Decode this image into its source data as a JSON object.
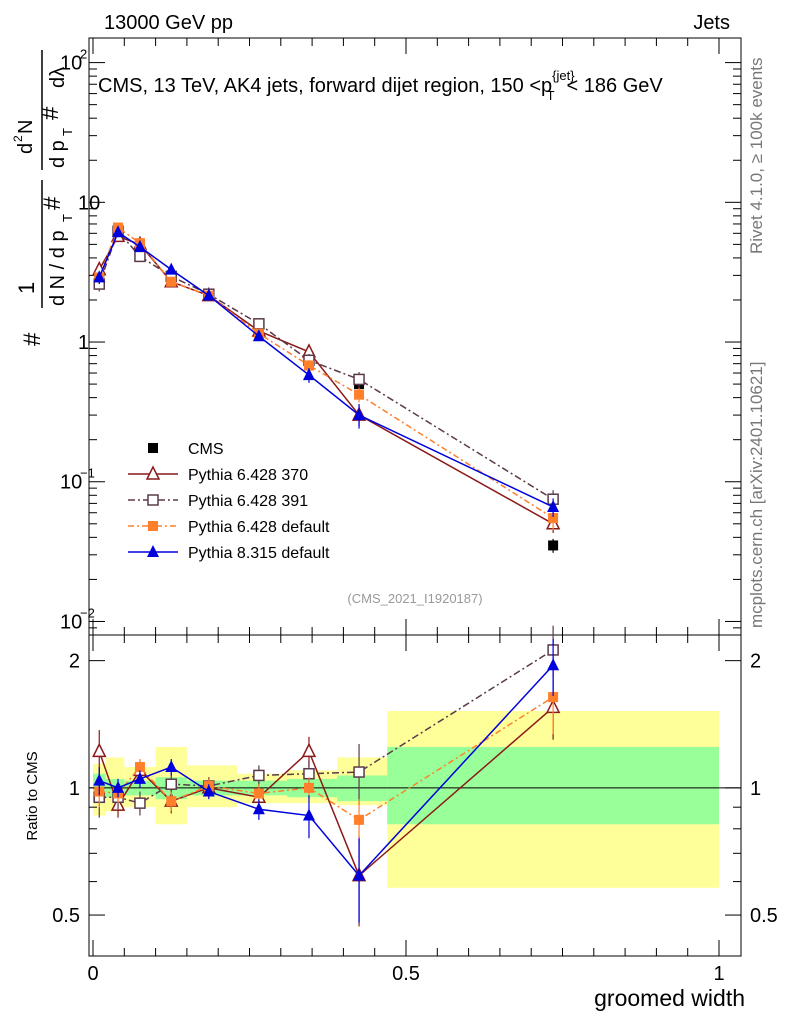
{
  "header": {
    "left": "13000 GeV pp",
    "right": "Jets"
  },
  "side_labels": {
    "rivet": "Rivet 4.1.0, ≥ 100k events",
    "mcplots": "mcplots.cern.ch [arXiv:2401.10621]"
  },
  "colors": {
    "cms": "#000000",
    "p370": "#8b1a1a",
    "p391": "#5a3a4a",
    "pdef": "#ff7f2a",
    "p8": "#0000dd",
    "band_inner": "#99ff99",
    "band_outer": "#ffff99"
  },
  "chart_data": [
    {
      "type": "scatter",
      "title": "CMS, 13 TeV, AK4 jets, forward dijet region, 150 <p_T^{jet}< 186 GeV",
      "ylabel": "1/(dN/dp_T) d²N/(dp_T dλ)",
      "xlabel": "groomed width",
      "yscale": "log",
      "xlim": [
        0,
        1
      ],
      "ylim": [
        0.008,
        150
      ],
      "y_ticks": [
        {
          "value": 100,
          "label": "10",
          "sup": "2"
        },
        {
          "value": 10,
          "label": "10",
          "sup": ""
        },
        {
          "value": 1,
          "label": "1",
          "sup": ""
        },
        {
          "value": 0.1,
          "label": "10",
          "sup": "−1"
        },
        {
          "value": 0.01,
          "label": "10",
          "sup": "−2"
        }
      ],
      "annotation": "(CMS_2021_I1920187)",
      "legend_position": "middle-left",
      "x": [
        0.01,
        0.04,
        0.075,
        0.125,
        0.185,
        0.265,
        0.345,
        0.425,
        0.735
      ],
      "series": [
        {
          "name": "CMS",
          "marker": "square-filled",
          "color": "#000000",
          "values": [
            2.8,
            6.4,
            4.6,
            2.9,
            2.2,
            1.25,
            0.68,
            0.5,
            0.035
          ],
          "errors": [
            0.2,
            0.3,
            0.25,
            0.15,
            0.1,
            0.07,
            0.05,
            0.05,
            0.004
          ]
        },
        {
          "name": "Pythia 6.428 370",
          "marker": "triangle-open",
          "color": "#8b1a1a",
          "dash": "",
          "values": [
            3.3,
            5.7,
            5.0,
            2.7,
            2.15,
            1.2,
            0.85,
            0.3,
            0.05
          ],
          "errors": [
            0.4,
            0.5,
            0.3,
            0.2,
            0.1,
            0.08,
            0.08,
            0.05,
            0.007
          ]
        },
        {
          "name": "Pythia 6.428 391",
          "marker": "square-open",
          "color": "#5a3a4a",
          "dash": "7,3,2,3",
          "values": [
            2.6,
            6.2,
            4.1,
            2.95,
            2.2,
            1.35,
            0.74,
            0.54,
            0.075
          ],
          "errors": [
            0.3,
            0.4,
            0.3,
            0.2,
            0.1,
            0.08,
            0.08,
            0.07,
            0.012
          ]
        },
        {
          "name": "Pythia 6.428 default",
          "marker": "square-filled",
          "color": "#ff7f2a",
          "dash": "6,3,2,3",
          "values": [
            2.9,
            6.6,
            5.1,
            2.7,
            2.15,
            1.15,
            0.68,
            0.42,
            0.055
          ],
          "errors": [
            0.3,
            0.4,
            0.3,
            0.15,
            0.1,
            0.07,
            0.06,
            0.05,
            0.01
          ]
        },
        {
          "name": "Pythia 8.315 default",
          "marker": "triangle-filled",
          "color": "#0000dd",
          "dash": "",
          "values": [
            2.9,
            6.1,
            4.8,
            3.3,
            2.15,
            1.1,
            0.58,
            0.3,
            0.066
          ],
          "errors": [
            0.3,
            0.4,
            0.3,
            0.2,
            0.1,
            0.07,
            0.07,
            0.06,
            0.01
          ]
        }
      ]
    },
    {
      "type": "scatter",
      "title": "",
      "ylabel": "Ratio to CMS",
      "xlabel": "groomed width",
      "xlim": [
        0,
        1
      ],
      "ylim": [
        0.4,
        2.3
      ],
      "x_ticks": [
        {
          "value": 0,
          "label": "0"
        },
        {
          "value": 0.5,
          "label": "0.5"
        },
        {
          "value": 1,
          "label": "1"
        }
      ],
      "y_ticks": [
        {
          "value": 2,
          "label": "2"
        },
        {
          "value": 1,
          "label": "1"
        },
        {
          "value": 0.5,
          "label": "0.5"
        }
      ],
      "bins": [
        {
          "lo": 0.0,
          "hi": 0.02,
          "in_lo": 0.92,
          "in_hi": 1.08,
          "out_lo": 0.86,
          "out_hi": 1.14
        },
        {
          "lo": 0.02,
          "hi": 0.05,
          "in_lo": 0.95,
          "in_hi": 1.05,
          "out_lo": 0.88,
          "out_hi": 1.18
        },
        {
          "lo": 0.05,
          "hi": 0.1,
          "in_lo": 0.96,
          "in_hi": 1.04,
          "out_lo": 0.9,
          "out_hi": 1.12
        },
        {
          "lo": 0.1,
          "hi": 0.15,
          "in_lo": 0.94,
          "in_hi": 1.06,
          "out_lo": 0.82,
          "out_hi": 1.25
        },
        {
          "lo": 0.15,
          "hi": 0.23,
          "in_lo": 0.96,
          "in_hi": 1.04,
          "out_lo": 0.9,
          "out_hi": 1.13
        },
        {
          "lo": 0.23,
          "hi": 0.31,
          "in_lo": 0.96,
          "in_hi": 1.04,
          "out_lo": 0.92,
          "out_hi": 1.08
        },
        {
          "lo": 0.31,
          "hi": 0.39,
          "in_lo": 0.95,
          "in_hi": 1.05,
          "out_lo": 0.92,
          "out_hi": 1.1
        },
        {
          "lo": 0.39,
          "hi": 0.47,
          "in_lo": 0.93,
          "in_hi": 1.07,
          "out_lo": 0.91,
          "out_hi": 1.18
        },
        {
          "lo": 0.47,
          "hi": 1.0,
          "in_lo": 0.82,
          "in_hi": 1.25,
          "out_lo": 0.58,
          "out_hi": 1.52
        }
      ],
      "x": [
        0.01,
        0.04,
        0.075,
        0.125,
        0.185,
        0.265,
        0.345,
        0.425,
        0.735
      ],
      "series": [
        {
          "name": "Pythia 6.428 370",
          "values": [
            1.22,
            0.91,
            1.1,
            0.93,
            1.0,
            0.95,
            1.22,
            0.62,
            1.55
          ],
          "errors": [
            0.15,
            0.06,
            0.06,
            0.06,
            0.05,
            0.06,
            0.1,
            0.15,
            0.25
          ]
        },
        {
          "name": "Pythia 6.428 391",
          "values": [
            0.95,
            0.95,
            0.92,
            1.02,
            1.01,
            1.07,
            1.08,
            1.09,
            2.12
          ],
          "errors": [
            0.1,
            0.06,
            0.06,
            0.06,
            0.05,
            0.06,
            0.08,
            0.18,
            0.3
          ]
        },
        {
          "name": "Pythia 6.428 default",
          "values": [
            0.98,
            0.97,
            1.12,
            0.93,
            1.01,
            0.97,
            1.0,
            0.84,
            1.64
          ],
          "errors": [
            0.08,
            0.05,
            0.05,
            0.05,
            0.04,
            0.05,
            0.06,
            0.1,
            0.3
          ]
        },
        {
          "name": "Pythia 8.315 default",
          "values": [
            1.04,
            1.0,
            1.05,
            1.12,
            0.98,
            0.89,
            0.86,
            0.62,
            1.95
          ],
          "errors": [
            0.08,
            0.05,
            0.05,
            0.05,
            0.04,
            0.05,
            0.1,
            0.14,
            0.3
          ]
        }
      ]
    }
  ]
}
